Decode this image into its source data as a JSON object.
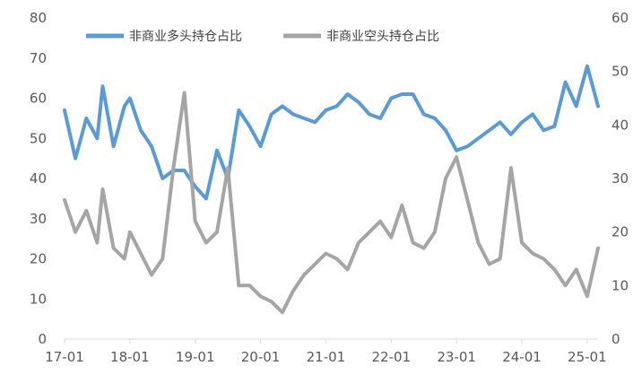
{
  "chart_data": {
    "type": "line",
    "title": "",
    "legend": {
      "placement": "top-left"
    },
    "grid": false,
    "x_axis": {
      "labels": [
        "17-01",
        "18-01",
        "19-01",
        "20-01",
        "21-01",
        "22-01",
        "23-01",
        "24-01",
        "25-01"
      ],
      "range": [
        "2017-01",
        "2025-03"
      ]
    },
    "y_left": {
      "ticks": [
        0,
        10,
        20,
        30,
        40,
        50,
        60,
        70,
        80
      ],
      "range": [
        0,
        80
      ]
    },
    "y_right": {
      "ticks": [
        0,
        10,
        20,
        30,
        40,
        50,
        60
      ],
      "range": [
        0,
        60
      ]
    },
    "series": [
      {
        "name": "非商业多头持仓占比",
        "axis": "left",
        "color": "#5b9bd5",
        "x": [
          "2017-01",
          "2017-03",
          "2017-05",
          "2017-07",
          "2017-08",
          "2017-10",
          "2017-12",
          "2018-01",
          "2018-03",
          "2018-05",
          "2018-07",
          "2018-09",
          "2018-11",
          "2019-01",
          "2019-03",
          "2019-05",
          "2019-07",
          "2019-09",
          "2019-11",
          "2020-01",
          "2020-03",
          "2020-05",
          "2020-07",
          "2020-09",
          "2020-11",
          "2021-01",
          "2021-03",
          "2021-05",
          "2021-07",
          "2021-09",
          "2021-11",
          "2022-01",
          "2022-03",
          "2022-05",
          "2022-07",
          "2022-09",
          "2022-11",
          "2023-01",
          "2023-03",
          "2023-05",
          "2023-07",
          "2023-09",
          "2023-11",
          "2024-01",
          "2024-03",
          "2024-05",
          "2024-07",
          "2024-09",
          "2024-11",
          "2025-01",
          "2025-03"
        ],
        "values": [
          57,
          45,
          55,
          50,
          63,
          48,
          58,
          60,
          52,
          48,
          40,
          42,
          42,
          38,
          35,
          47,
          40,
          57,
          53,
          48,
          56,
          58,
          56,
          55,
          54,
          57,
          58,
          61,
          59,
          56,
          55,
          60,
          61,
          61,
          56,
          55,
          52,
          47,
          48,
          50,
          52,
          54,
          51,
          54,
          56,
          52,
          53,
          64,
          58,
          68,
          58
        ]
      },
      {
        "name": "非商业空头持仓占比",
        "axis": "right",
        "color": "#a5a5a5",
        "x": [
          "2017-01",
          "2017-03",
          "2017-05",
          "2017-07",
          "2017-08",
          "2017-10",
          "2017-12",
          "2018-01",
          "2018-03",
          "2018-05",
          "2018-07",
          "2018-09",
          "2018-11",
          "2019-01",
          "2019-03",
          "2019-05",
          "2019-07",
          "2019-09",
          "2019-11",
          "2020-01",
          "2020-03",
          "2020-05",
          "2020-07",
          "2020-09",
          "2020-11",
          "2021-01",
          "2021-03",
          "2021-05",
          "2021-07",
          "2021-09",
          "2021-11",
          "2022-01",
          "2022-03",
          "2022-05",
          "2022-07",
          "2022-09",
          "2022-11",
          "2023-01",
          "2023-03",
          "2023-05",
          "2023-07",
          "2023-09",
          "2023-11",
          "2024-01",
          "2024-03",
          "2024-05",
          "2024-07",
          "2024-09",
          "2024-11",
          "2025-01",
          "2025-03"
        ],
        "values": [
          26,
          20,
          24,
          18,
          28,
          17,
          15,
          20,
          16,
          12,
          15,
          32,
          46,
          22,
          18,
          20,
          32,
          10,
          10,
          8,
          7,
          5,
          9,
          12,
          14,
          16,
          15,
          13,
          18,
          20,
          22,
          19,
          25,
          18,
          17,
          20,
          30,
          34,
          26,
          18,
          14,
          15,
          32,
          18,
          16,
          15,
          13,
          10,
          13,
          8,
          17
        ]
      }
    ]
  }
}
